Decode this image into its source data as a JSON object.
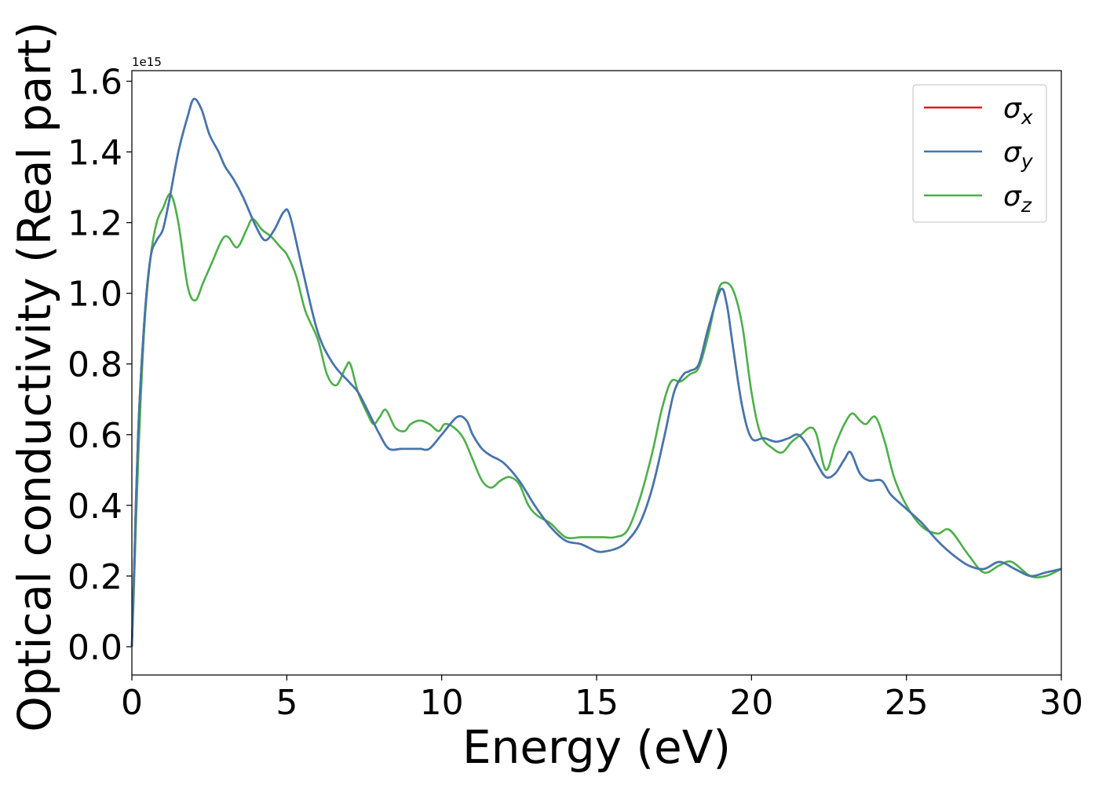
{
  "chart_data": {
    "type": "line",
    "xlabel": "Energy (eV)",
    "ylabel": "Optical conductivity (Real part)",
    "y_offset_text": "1e15",
    "xlim": [
      0,
      30
    ],
    "ylim": [
      -0.08,
      1.63
    ],
    "xticks": [
      "0",
      "5",
      "10",
      "15",
      "20",
      "25",
      "30"
    ],
    "yticks": [
      "0.0",
      "0.2",
      "0.4",
      "0.6",
      "0.8",
      "1.0",
      "1.2",
      "1.4",
      "1.6"
    ],
    "grid": false,
    "legend_position": "top-right",
    "series": [
      {
        "name": "σx",
        "symbol": "σ",
        "sub": "x",
        "color": "#e41a1c",
        "hidden_under": "σy",
        "x": [
          0,
          0.05,
          0.2,
          0.4,
          0.6,
          0.8,
          1.0,
          1.2,
          1.5,
          1.8,
          2.0,
          2.25,
          2.5,
          2.8,
          3.0,
          3.3,
          3.6,
          4.0,
          4.3,
          4.6,
          4.9,
          5.1,
          5.5,
          6.0,
          6.5,
          7.0,
          7.3,
          7.6,
          8.0,
          8.3,
          8.7,
          9.0,
          9.3,
          9.6,
          10.0,
          10.5,
          10.8,
          11.0,
          11.3,
          11.6,
          12.0,
          12.5,
          13.0,
          13.5,
          14.0,
          14.5,
          15.0,
          15.3,
          15.7,
          16.0,
          16.4,
          16.8,
          17.2,
          17.5,
          17.8,
          18.0,
          18.3,
          18.6,
          19.0,
          19.2,
          19.4,
          19.7,
          20.0,
          20.4,
          20.8,
          21.2,
          21.5,
          21.8,
          22.1,
          22.4,
          22.7,
          23.0,
          23.2,
          23.5,
          23.8,
          24.2,
          24.5,
          25.0,
          25.5,
          26.0,
          26.5,
          27.0,
          27.5,
          28.0,
          28.5,
          29.0,
          29.5,
          30.0
        ],
        "y": [
          0,
          0.15,
          0.6,
          0.92,
          1.1,
          1.15,
          1.18,
          1.26,
          1.4,
          1.5,
          1.55,
          1.52,
          1.45,
          1.4,
          1.36,
          1.32,
          1.27,
          1.19,
          1.15,
          1.18,
          1.23,
          1.22,
          1.07,
          0.89,
          0.8,
          0.75,
          0.72,
          0.67,
          0.6,
          0.56,
          0.56,
          0.56,
          0.56,
          0.56,
          0.6,
          0.65,
          0.64,
          0.6,
          0.56,
          0.54,
          0.52,
          0.47,
          0.4,
          0.34,
          0.3,
          0.29,
          0.27,
          0.27,
          0.28,
          0.3,
          0.35,
          0.45,
          0.6,
          0.72,
          0.77,
          0.78,
          0.8,
          0.9,
          1.01,
          0.97,
          0.85,
          0.68,
          0.59,
          0.59,
          0.58,
          0.59,
          0.6,
          0.57,
          0.52,
          0.48,
          0.49,
          0.53,
          0.55,
          0.49,
          0.47,
          0.47,
          0.43,
          0.39,
          0.35,
          0.3,
          0.26,
          0.23,
          0.22,
          0.24,
          0.22,
          0.2,
          0.21,
          0.22
        ]
      },
      {
        "name": "σy",
        "symbol": "σ",
        "sub": "y",
        "color": "#3f78b0",
        "x": [
          0,
          0.05,
          0.2,
          0.4,
          0.6,
          0.8,
          1.0,
          1.2,
          1.5,
          1.8,
          2.0,
          2.25,
          2.5,
          2.8,
          3.0,
          3.3,
          3.6,
          4.0,
          4.3,
          4.6,
          4.9,
          5.1,
          5.5,
          6.0,
          6.5,
          7.0,
          7.3,
          7.6,
          8.0,
          8.3,
          8.7,
          9.0,
          9.3,
          9.6,
          10.0,
          10.5,
          10.8,
          11.0,
          11.3,
          11.6,
          12.0,
          12.5,
          13.0,
          13.5,
          14.0,
          14.5,
          15.0,
          15.3,
          15.7,
          16.0,
          16.4,
          16.8,
          17.2,
          17.5,
          17.8,
          18.0,
          18.3,
          18.6,
          19.0,
          19.2,
          19.4,
          19.7,
          20.0,
          20.4,
          20.8,
          21.2,
          21.5,
          21.8,
          22.1,
          22.4,
          22.7,
          23.0,
          23.2,
          23.5,
          23.8,
          24.2,
          24.5,
          25.0,
          25.5,
          26.0,
          26.5,
          27.0,
          27.5,
          28.0,
          28.5,
          29.0,
          29.5,
          30.0
        ],
        "y": [
          0,
          0.15,
          0.6,
          0.92,
          1.1,
          1.15,
          1.18,
          1.26,
          1.4,
          1.5,
          1.55,
          1.52,
          1.45,
          1.4,
          1.36,
          1.32,
          1.27,
          1.19,
          1.15,
          1.18,
          1.23,
          1.22,
          1.07,
          0.89,
          0.8,
          0.75,
          0.72,
          0.67,
          0.6,
          0.56,
          0.56,
          0.56,
          0.56,
          0.56,
          0.6,
          0.65,
          0.64,
          0.6,
          0.56,
          0.54,
          0.52,
          0.47,
          0.4,
          0.34,
          0.3,
          0.29,
          0.27,
          0.27,
          0.28,
          0.3,
          0.35,
          0.45,
          0.6,
          0.72,
          0.77,
          0.78,
          0.8,
          0.9,
          1.01,
          0.97,
          0.85,
          0.68,
          0.59,
          0.59,
          0.58,
          0.59,
          0.6,
          0.57,
          0.52,
          0.48,
          0.49,
          0.53,
          0.55,
          0.49,
          0.47,
          0.47,
          0.43,
          0.39,
          0.35,
          0.3,
          0.26,
          0.23,
          0.22,
          0.24,
          0.22,
          0.2,
          0.21,
          0.22
        ]
      },
      {
        "name": "σz",
        "symbol": "σ",
        "sub": "z",
        "color": "#4daf4a",
        "x": [
          0,
          0.05,
          0.2,
          0.4,
          0.6,
          0.8,
          1.0,
          1.25,
          1.5,
          1.8,
          2.05,
          2.3,
          2.6,
          2.9,
          3.1,
          3.4,
          3.7,
          3.9,
          4.2,
          4.5,
          4.8,
          5.0,
          5.3,
          5.6,
          6.0,
          6.3,
          6.6,
          6.9,
          7.05,
          7.3,
          7.6,
          7.8,
          8.0,
          8.2,
          8.5,
          8.8,
          9.0,
          9.3,
          9.6,
          9.9,
          10.1,
          10.4,
          10.7,
          11.0,
          11.3,
          11.6,
          11.9,
          12.2,
          12.5,
          12.8,
          13.1,
          13.5,
          14.0,
          14.5,
          14.9,
          15.2,
          15.6,
          16.0,
          16.4,
          16.8,
          17.1,
          17.4,
          17.7,
          18.0,
          18.3,
          18.6,
          18.9,
          19.1,
          19.4,
          19.7,
          20.0,
          20.3,
          20.7,
          21.0,
          21.3,
          21.6,
          21.9,
          22.1,
          22.4,
          22.7,
          23.0,
          23.25,
          23.5,
          23.7,
          24.0,
          24.3,
          24.6,
          25.0,
          25.5,
          26.0,
          26.4,
          27.0,
          27.5,
          28.0,
          28.4,
          29.0,
          29.5,
          30.0
        ],
        "y": [
          0,
          0.12,
          0.52,
          0.9,
          1.1,
          1.2,
          1.24,
          1.28,
          1.2,
          1.02,
          0.98,
          1.03,
          1.09,
          1.15,
          1.16,
          1.13,
          1.18,
          1.21,
          1.18,
          1.16,
          1.13,
          1.11,
          1.05,
          0.95,
          0.87,
          0.77,
          0.74,
          0.79,
          0.8,
          0.72,
          0.66,
          0.63,
          0.65,
          0.67,
          0.62,
          0.61,
          0.63,
          0.64,
          0.63,
          0.61,
          0.63,
          0.62,
          0.59,
          0.53,
          0.47,
          0.45,
          0.47,
          0.48,
          0.46,
          0.4,
          0.37,
          0.35,
          0.31,
          0.31,
          0.31,
          0.31,
          0.31,
          0.33,
          0.42,
          0.55,
          0.67,
          0.75,
          0.75,
          0.77,
          0.79,
          0.88,
          1.0,
          1.03,
          1.01,
          0.91,
          0.72,
          0.6,
          0.56,
          0.55,
          0.58,
          0.6,
          0.62,
          0.6,
          0.5,
          0.57,
          0.63,
          0.66,
          0.64,
          0.63,
          0.65,
          0.58,
          0.48,
          0.4,
          0.34,
          0.32,
          0.33,
          0.26,
          0.21,
          0.23,
          0.24,
          0.2,
          0.2,
          0.22
        ]
      }
    ]
  }
}
